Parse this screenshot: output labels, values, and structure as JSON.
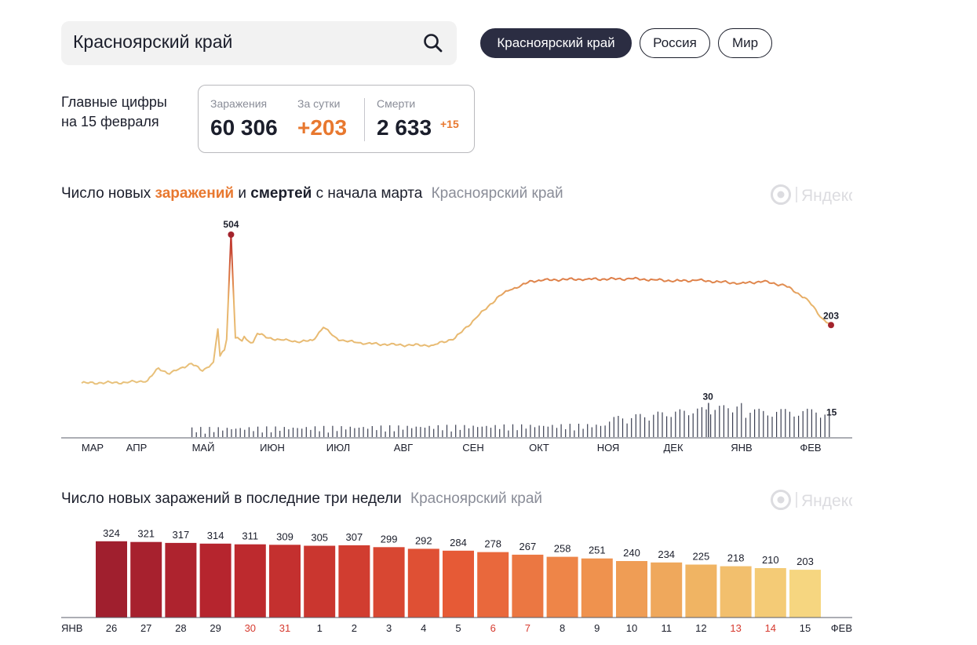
{
  "search": {
    "value": "Красноярский край",
    "icon": "search-icon"
  },
  "region_buttons": [
    {
      "label": "Красноярский край",
      "active": true
    },
    {
      "label": "Россия",
      "active": false
    },
    {
      "label": "Мир",
      "active": false
    }
  ],
  "summary": {
    "caption_line1": "Главные цифры",
    "caption_line2": "на 15 февраля",
    "cases_label": "Заражения",
    "cases_value": "60 306",
    "daily_label": "За сутки",
    "daily_value": "+203",
    "deaths_label": "Смерти",
    "deaths_value": "2 633",
    "deaths_daily": "+15"
  },
  "brand": "Яндекс",
  "colors": {
    "cases_low": "#e9c27a",
    "cases_high": "#d0523a",
    "deaths": "#3b3f52",
    "accent": "#e8782f",
    "bar_scale": [
      "#a01f2e",
      "#b8262e",
      "#cf3a2f",
      "#e65a36",
      "#ef8a4a",
      "#efb060",
      "#f6d680"
    ]
  },
  "chart_data": [
    {
      "type": "line",
      "title_parts": {
        "part1": "Число новых ",
        "cases_word": "заражений",
        "part2": " и ",
        "deaths_word": "смертей",
        "part3": " с начала марта",
        "region": "Красноярский край"
      },
      "x_ticks": [
        "МАР",
        "АПР",
        "МАЙ",
        "ИЮН",
        "ИЮЛ",
        "АВГ",
        "СЕН",
        "ОКТ",
        "НОЯ",
        "ДЕК",
        "ЯНВ",
        "ФЕВ"
      ],
      "cases_series": {
        "name": "заражения",
        "unit_note": "daily new cases, 7-day smoothed; keypoints by day index from 1 March 2020",
        "days": [
          0,
          20,
          30,
          35,
          40,
          45,
          50,
          55,
          60,
          62,
          63,
          65,
          66,
          68,
          70,
          72,
          73,
          74,
          75,
          78,
          80,
          85,
          90,
          95,
          100,
          105,
          110,
          115,
          116,
          118,
          120,
          125,
          130,
          140,
          150,
          160,
          170,
          180,
          190,
          195,
          200,
          205,
          210,
          220,
          230,
          240,
          250,
          260,
          270,
          280,
          290,
          300,
          310,
          320,
          330,
          337,
          341
        ],
        "values": [
          10,
          12,
          18,
          60,
          40,
          60,
          75,
          50,
          80,
          190,
          100,
          120,
          155,
          504,
          160,
          155,
          150,
          165,
          155,
          145,
          175,
          160,
          155,
          150,
          148,
          152,
          195,
          165,
          160,
          152,
          150,
          145,
          142,
          138,
          136,
          136,
          160,
          230,
          300,
          320,
          335,
          350,
          352,
          355,
          356,
          356,
          357,
          354,
          350,
          352,
          347,
          342,
          348,
          335,
          290,
          225,
          203
        ],
        "peak_label": "504",
        "last_label": "203"
      },
      "deaths_series": {
        "name": "смерти",
        "max_label": "30",
        "last_label": "15",
        "max_value": 30,
        "last_value": 15
      },
      "y_max_cases": 504
    },
    {
      "type": "bar",
      "title": "Число новых заражений в последние три недели",
      "region": "Красноярский край",
      "month_start_label": "ЯНВ",
      "month_end_label": "ФЕВ",
      "categories": [
        "26",
        "27",
        "28",
        "29",
        "30",
        "31",
        "1",
        "2",
        "3",
        "4",
        "5",
        "6",
        "7",
        "8",
        "9",
        "10",
        "11",
        "12",
        "13",
        "14",
        "15"
      ],
      "weekend": [
        false,
        false,
        false,
        false,
        true,
        true,
        false,
        false,
        false,
        false,
        false,
        true,
        true,
        false,
        false,
        false,
        false,
        false,
        true,
        true,
        false
      ],
      "values": [
        324,
        321,
        317,
        314,
        311,
        309,
        305,
        307,
        299,
        292,
        284,
        278,
        267,
        258,
        251,
        240,
        234,
        225,
        218,
        210,
        203
      ]
    }
  ]
}
